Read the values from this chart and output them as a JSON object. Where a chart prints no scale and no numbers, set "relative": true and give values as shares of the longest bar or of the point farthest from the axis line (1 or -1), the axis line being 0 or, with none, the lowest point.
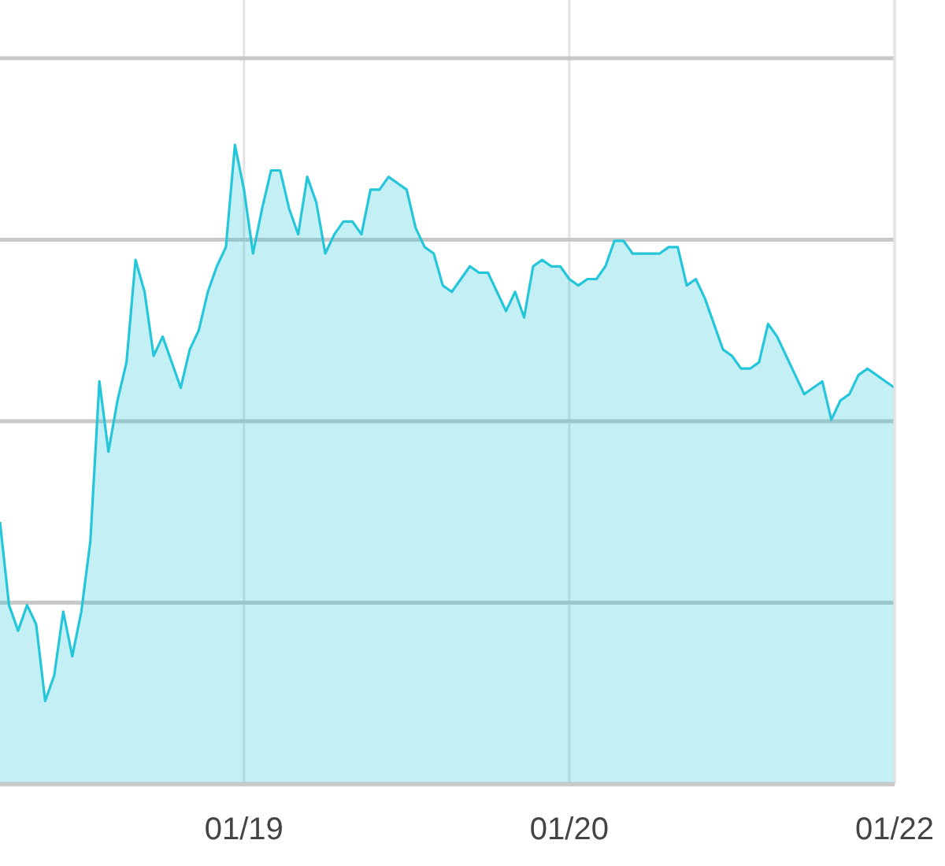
{
  "chart_data": {
    "type": "area",
    "relative": true,
    "grid": true,
    "categories": [
      null,
      null,
      null,
      null,
      null,
      null,
      null,
      null,
      null,
      null,
      null,
      null,
      null,
      null,
      null,
      null,
      null,
      null,
      null,
      null,
      null,
      null,
      null,
      null,
      null,
      null,
      null,
      "01/19",
      null,
      null,
      null,
      null,
      null,
      null,
      null,
      null,
      null,
      null,
      null,
      null,
      null,
      null,
      null,
      null,
      null,
      null,
      null,
      null,
      null,
      null,
      null,
      null,
      null,
      null,
      null,
      null,
      null,
      null,
      null,
      null,
      null,
      null,
      null,
      "01/20",
      null,
      null,
      null,
      null,
      null,
      null,
      null,
      null,
      null,
      null,
      null,
      null,
      null,
      null,
      null,
      null,
      null,
      null,
      null,
      null,
      null,
      null,
      null,
      null,
      null,
      null,
      null,
      null,
      null,
      null,
      null,
      null,
      null,
      null,
      null,
      "01/22"
    ],
    "series": [
      {
        "color": "#26c6da",
        "values": [
          0.41,
          0.28,
          0.24,
          0.28,
          0.25,
          0.13,
          0.17,
          0.27,
          0.2,
          0.27,
          0.38,
          0.63,
          0.52,
          0.6,
          0.66,
          0.82,
          0.77,
          0.67,
          0.7,
          0.66,
          0.62,
          0.68,
          0.71,
          0.77,
          0.81,
          0.84,
          1,
          0.93,
          0.83,
          0.9,
          0.96,
          0.96,
          0.9,
          0.86,
          0.95,
          0.91,
          0.83,
          0.86,
          0.88,
          0.88,
          0.86,
          0.93,
          0.93,
          0.95,
          0.94,
          0.93,
          0.87,
          0.84,
          0.83,
          0.78,
          0.77,
          0.79,
          0.81,
          0.8,
          0.8,
          0.77,
          0.74,
          0.77,
          0.73,
          0.81,
          0.82,
          0.81,
          0.81,
          0.79,
          0.78,
          0.79,
          0.79,
          0.81,
          0.85,
          0.85,
          0.83,
          0.83,
          0.83,
          0.83,
          0.84,
          0.84,
          0.78,
          0.79,
          0.76,
          0.72,
          0.68,
          0.67,
          0.65,
          0.65,
          0.66,
          0.72,
          0.7,
          0.67,
          0.64,
          0.61,
          0.62,
          0.63,
          0.57,
          0.6,
          0.61,
          0.64,
          0.65,
          0.64,
          0.63,
          0.62
        ]
      }
    ]
  }
}
